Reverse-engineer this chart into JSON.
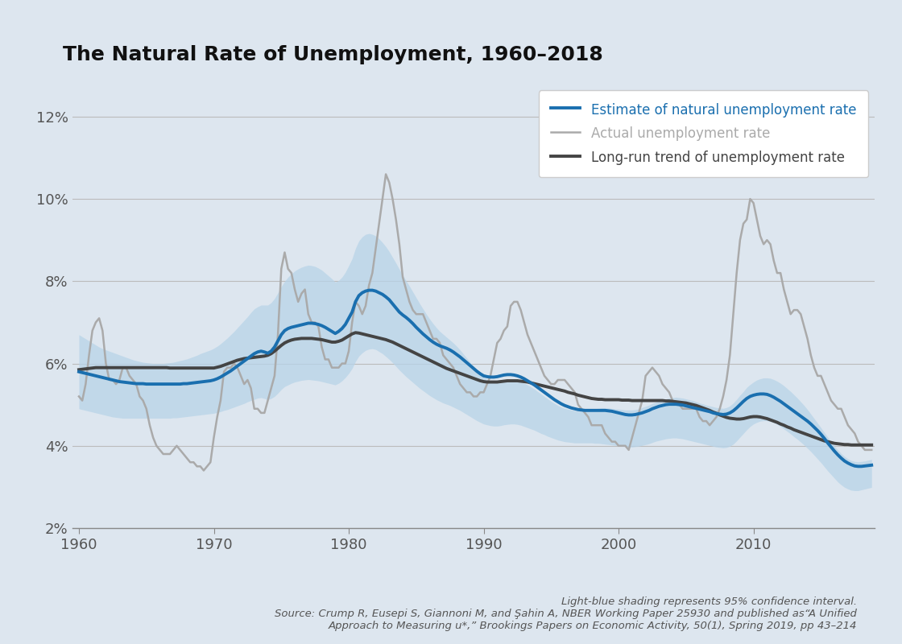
{
  "title": "The Natural Rate of Unemployment, 1960–2018",
  "background_color": "#dde6ef",
  "plot_background_color": "#dde6ef",
  "yticks": [
    2,
    4,
    6,
    8,
    10,
    12
  ],
  "ytick_labels": [
    "2%",
    "4%",
    "6%",
    "8%",
    "10%",
    "12%"
  ],
  "xticks": [
    1960,
    1970,
    1980,
    1990,
    2000,
    2010
  ],
  "xlim": [
    1959.5,
    2019.0
  ],
  "ylim": [
    2.0,
    12.8
  ],
  "footnote_line1": "Light-blue shading represents 95% confidence interval.",
  "footnote_line2": "Source: Crump R, Eusepi S, Giannoni M, and Şahin A, NBER Working Paper 25930 and published as“A Unified",
  "footnote_line3": "Approach to Measuring u*,” Brookings Papers on Economic Activity, 50(1), Spring 2019, pp 43–214",
  "legend_label1": "Estimate of natural unemployment rate",
  "legend_label2": "Actual unemployment rate",
  "legend_label3": "Long-run trend of unemployment rate",
  "estimate_color": "#1a6faf",
  "actual_color": "#aaaaaa",
  "trend_color": "#444444",
  "ci_color": "#b8d4e8",
  "years_q": [
    1960.0,
    1960.25,
    1960.5,
    1960.75,
    1961.0,
    1961.25,
    1961.5,
    1961.75,
    1962.0,
    1962.25,
    1962.5,
    1962.75,
    1963.0,
    1963.25,
    1963.5,
    1963.75,
    1964.0,
    1964.25,
    1964.5,
    1964.75,
    1965.0,
    1965.25,
    1965.5,
    1965.75,
    1966.0,
    1966.25,
    1966.5,
    1966.75,
    1967.0,
    1967.25,
    1967.5,
    1967.75,
    1968.0,
    1968.25,
    1968.5,
    1968.75,
    1969.0,
    1969.25,
    1969.5,
    1969.75,
    1970.0,
    1970.25,
    1970.5,
    1970.75,
    1971.0,
    1971.25,
    1971.5,
    1971.75,
    1972.0,
    1972.25,
    1972.5,
    1972.75,
    1973.0,
    1973.25,
    1973.5,
    1973.75,
    1974.0,
    1974.25,
    1974.5,
    1974.75,
    1975.0,
    1975.25,
    1975.5,
    1975.75,
    1976.0,
    1976.25,
    1976.5,
    1976.75,
    1977.0,
    1977.25,
    1977.5,
    1977.75,
    1978.0,
    1978.25,
    1978.5,
    1978.75,
    1979.0,
    1979.25,
    1979.5,
    1979.75,
    1980.0,
    1980.25,
    1980.5,
    1980.75,
    1981.0,
    1981.25,
    1981.5,
    1981.75,
    1982.0,
    1982.25,
    1982.5,
    1982.75,
    1983.0,
    1983.25,
    1983.5,
    1983.75,
    1984.0,
    1984.25,
    1984.5,
    1984.75,
    1985.0,
    1985.25,
    1985.5,
    1985.75,
    1986.0,
    1986.25,
    1986.5,
    1986.75,
    1987.0,
    1987.25,
    1987.5,
    1987.75,
    1988.0,
    1988.25,
    1988.5,
    1988.75,
    1989.0,
    1989.25,
    1989.5,
    1989.75,
    1990.0,
    1990.25,
    1990.5,
    1990.75,
    1991.0,
    1991.25,
    1991.5,
    1991.75,
    1992.0,
    1992.25,
    1992.5,
    1992.75,
    1993.0,
    1993.25,
    1993.5,
    1993.75,
    1994.0,
    1994.25,
    1994.5,
    1994.75,
    1995.0,
    1995.25,
    1995.5,
    1995.75,
    1996.0,
    1996.25,
    1996.5,
    1996.75,
    1997.0,
    1997.25,
    1997.5,
    1997.75,
    1998.0,
    1998.25,
    1998.5,
    1998.75,
    1999.0,
    1999.25,
    1999.5,
    1999.75,
    2000.0,
    2000.25,
    2000.5,
    2000.75,
    2001.0,
    2001.25,
    2001.5,
    2001.75,
    2002.0,
    2002.25,
    2002.5,
    2002.75,
    2003.0,
    2003.25,
    2003.5,
    2003.75,
    2004.0,
    2004.25,
    2004.5,
    2004.75,
    2005.0,
    2005.25,
    2005.5,
    2005.75,
    2006.0,
    2006.25,
    2006.5,
    2006.75,
    2007.0,
    2007.25,
    2007.5,
    2007.75,
    2008.0,
    2008.25,
    2008.5,
    2008.75,
    2009.0,
    2009.25,
    2009.5,
    2009.75,
    2010.0,
    2010.25,
    2010.5,
    2010.75,
    2011.0,
    2011.25,
    2011.5,
    2011.75,
    2012.0,
    2012.25,
    2012.5,
    2012.75,
    2013.0,
    2013.25,
    2013.5,
    2013.75,
    2014.0,
    2014.25,
    2014.5,
    2014.75,
    2015.0,
    2015.25,
    2015.5,
    2015.75,
    2016.0,
    2016.25,
    2016.5,
    2016.75,
    2017.0,
    2017.25,
    2017.5,
    2017.75,
    2018.0,
    2018.25,
    2018.5,
    2018.75
  ],
  "estimate": [
    5.8,
    5.78,
    5.76,
    5.74,
    5.72,
    5.7,
    5.68,
    5.66,
    5.64,
    5.62,
    5.6,
    5.58,
    5.56,
    5.55,
    5.54,
    5.53,
    5.52,
    5.51,
    5.51,
    5.51,
    5.5,
    5.5,
    5.5,
    5.5,
    5.5,
    5.5,
    5.5,
    5.5,
    5.5,
    5.5,
    5.5,
    5.51,
    5.51,
    5.52,
    5.53,
    5.54,
    5.55,
    5.56,
    5.57,
    5.58,
    5.6,
    5.63,
    5.67,
    5.72,
    5.77,
    5.82,
    5.88,
    5.94,
    6.0,
    6.06,
    6.12,
    6.18,
    6.24,
    6.28,
    6.3,
    6.28,
    6.25,
    6.3,
    6.4,
    6.55,
    6.7,
    6.8,
    6.85,
    6.88,
    6.9,
    6.92,
    6.94,
    6.96,
    6.98,
    6.98,
    6.97,
    6.95,
    6.92,
    6.88,
    6.83,
    6.78,
    6.73,
    6.78,
    6.85,
    6.95,
    7.1,
    7.25,
    7.5,
    7.65,
    7.72,
    7.76,
    7.78,
    7.78,
    7.76,
    7.72,
    7.68,
    7.62,
    7.55,
    7.45,
    7.35,
    7.25,
    7.18,
    7.12,
    7.05,
    6.97,
    6.88,
    6.8,
    6.72,
    6.65,
    6.58,
    6.52,
    6.47,
    6.43,
    6.4,
    6.37,
    6.33,
    6.28,
    6.22,
    6.16,
    6.09,
    6.02,
    5.95,
    5.88,
    5.81,
    5.75,
    5.7,
    5.68,
    5.67,
    5.67,
    5.68,
    5.7,
    5.72,
    5.73,
    5.73,
    5.72,
    5.7,
    5.67,
    5.63,
    5.58,
    5.53,
    5.48,
    5.42,
    5.36,
    5.3,
    5.24,
    5.18,
    5.12,
    5.07,
    5.02,
    4.98,
    4.95,
    4.92,
    4.9,
    4.88,
    4.87,
    4.86,
    4.86,
    4.86,
    4.86,
    4.86,
    4.86,
    4.86,
    4.85,
    4.84,
    4.82,
    4.8,
    4.78,
    4.76,
    4.75,
    4.75,
    4.76,
    4.78,
    4.8,
    4.83,
    4.86,
    4.9,
    4.93,
    4.96,
    4.98,
    5.0,
    5.01,
    5.01,
    5.01,
    5.0,
    4.99,
    4.97,
    4.95,
    4.93,
    4.91,
    4.89,
    4.87,
    4.85,
    4.83,
    4.8,
    4.78,
    4.77,
    4.76,
    4.77,
    4.8,
    4.85,
    4.92,
    5.0,
    5.08,
    5.15,
    5.2,
    5.23,
    5.25,
    5.26,
    5.26,
    5.25,
    5.22,
    5.18,
    5.13,
    5.08,
    5.02,
    4.96,
    4.9,
    4.84,
    4.78,
    4.72,
    4.66,
    4.6,
    4.53,
    4.45,
    4.37,
    4.28,
    4.18,
    4.07,
    3.97,
    3.87,
    3.78,
    3.7,
    3.63,
    3.58,
    3.54,
    3.51,
    3.5,
    3.5,
    3.51,
    3.52,
    3.53
  ],
  "ci_upper": [
    6.7,
    6.65,
    6.6,
    6.55,
    6.5,
    6.45,
    6.4,
    6.36,
    6.33,
    6.3,
    6.27,
    6.24,
    6.21,
    6.18,
    6.15,
    6.12,
    6.09,
    6.07,
    6.05,
    6.03,
    6.02,
    6.01,
    6.0,
    6.0,
    6.0,
    6.0,
    6.01,
    6.02,
    6.03,
    6.05,
    6.07,
    6.09,
    6.11,
    6.14,
    6.17,
    6.2,
    6.24,
    6.27,
    6.3,
    6.33,
    6.37,
    6.42,
    6.48,
    6.55,
    6.62,
    6.7,
    6.78,
    6.87,
    6.96,
    7.05,
    7.14,
    7.24,
    7.33,
    7.38,
    7.42,
    7.42,
    7.42,
    7.48,
    7.58,
    7.72,
    7.87,
    8.0,
    8.1,
    8.18,
    8.25,
    8.3,
    8.34,
    8.37,
    8.39,
    8.38,
    8.36,
    8.32,
    8.27,
    8.2,
    8.13,
    8.06,
    7.98,
    8.02,
    8.1,
    8.22,
    8.38,
    8.55,
    8.8,
    8.98,
    9.08,
    9.14,
    9.16,
    9.14,
    9.1,
    9.03,
    8.94,
    8.84,
    8.72,
    8.58,
    8.44,
    8.29,
    8.15,
    8.01,
    7.88,
    7.74,
    7.6,
    7.46,
    7.33,
    7.2,
    7.08,
    6.97,
    6.87,
    6.78,
    6.71,
    6.64,
    6.57,
    6.5,
    6.42,
    6.33,
    6.23,
    6.13,
    6.03,
    5.93,
    5.83,
    5.74,
    5.66,
    5.61,
    5.58,
    5.56,
    5.56,
    5.57,
    5.59,
    5.6,
    5.61,
    5.6,
    5.59,
    5.56,
    5.52,
    5.48,
    5.43,
    5.38,
    5.32,
    5.26,
    5.2,
    5.14,
    5.08,
    5.03,
    4.98,
    4.94,
    4.91,
    4.89,
    4.87,
    4.86,
    4.86,
    4.86,
    4.87,
    4.88,
    4.89,
    4.9,
    4.91,
    4.92,
    4.92,
    4.92,
    4.91,
    4.9,
    4.89,
    4.88,
    4.87,
    4.87,
    4.87,
    4.88,
    4.9,
    4.93,
    4.96,
    4.99,
    5.03,
    5.06,
    5.09,
    5.12,
    5.14,
    5.16,
    5.17,
    5.18,
    5.17,
    5.16,
    5.14,
    5.12,
    5.1,
    5.07,
    5.04,
    5.02,
    4.99,
    4.97,
    4.95,
    4.93,
    4.92,
    4.91,
    4.93,
    4.97,
    5.04,
    5.13,
    5.23,
    5.32,
    5.42,
    5.49,
    5.55,
    5.6,
    5.63,
    5.65,
    5.65,
    5.64,
    5.61,
    5.57,
    5.52,
    5.46,
    5.39,
    5.32,
    5.24,
    5.16,
    5.07,
    4.98,
    4.88,
    4.77,
    4.66,
    4.55,
    4.44,
    4.32,
    4.21,
    4.1,
    3.99,
    3.9,
    3.81,
    3.74,
    3.68,
    3.64,
    3.62,
    3.61,
    3.62,
    3.63,
    3.65,
    3.67
  ],
  "ci_lower": [
    4.9,
    4.88,
    4.86,
    4.84,
    4.82,
    4.8,
    4.78,
    4.76,
    4.74,
    4.72,
    4.7,
    4.69,
    4.68,
    4.67,
    4.67,
    4.67,
    4.67,
    4.67,
    4.67,
    4.67,
    4.67,
    4.67,
    4.67,
    4.67,
    4.67,
    4.67,
    4.67,
    4.67,
    4.68,
    4.68,
    4.69,
    4.7,
    4.71,
    4.72,
    4.73,
    4.74,
    4.75,
    4.76,
    4.77,
    4.78,
    4.79,
    4.81,
    4.83,
    4.86,
    4.88,
    4.91,
    4.94,
    4.97,
    5.0,
    5.03,
    5.07,
    5.1,
    5.13,
    5.16,
    5.17,
    5.15,
    5.12,
    5.15,
    5.2,
    5.28,
    5.37,
    5.44,
    5.48,
    5.52,
    5.55,
    5.57,
    5.59,
    5.6,
    5.61,
    5.6,
    5.59,
    5.58,
    5.56,
    5.54,
    5.52,
    5.5,
    5.48,
    5.52,
    5.58,
    5.66,
    5.76,
    5.88,
    6.05,
    6.18,
    6.26,
    6.32,
    6.35,
    6.36,
    6.34,
    6.29,
    6.24,
    6.17,
    6.1,
    6.02,
    5.93,
    5.84,
    5.76,
    5.68,
    5.61,
    5.54,
    5.47,
    5.4,
    5.34,
    5.28,
    5.22,
    5.17,
    5.12,
    5.08,
    5.04,
    5.01,
    4.98,
    4.94,
    4.9,
    4.86,
    4.81,
    4.76,
    4.71,
    4.66,
    4.61,
    4.57,
    4.53,
    4.51,
    4.49,
    4.48,
    4.48,
    4.49,
    4.51,
    4.52,
    4.53,
    4.53,
    4.52,
    4.5,
    4.47,
    4.44,
    4.41,
    4.38,
    4.34,
    4.3,
    4.27,
    4.23,
    4.2,
    4.17,
    4.14,
    4.12,
    4.1,
    4.09,
    4.08,
    4.07,
    4.07,
    4.07,
    4.07,
    4.07,
    4.07,
    4.06,
    4.06,
    4.05,
    4.04,
    4.03,
    4.02,
    4.01,
    4.0,
    3.99,
    3.98,
    3.97,
    3.97,
    3.98,
    3.99,
    4.01,
    4.03,
    4.05,
    4.08,
    4.11,
    4.13,
    4.15,
    4.17,
    4.18,
    4.19,
    4.19,
    4.18,
    4.17,
    4.15,
    4.13,
    4.11,
    4.09,
    4.07,
    4.05,
    4.03,
    4.01,
    3.99,
    3.97,
    3.96,
    3.95,
    3.96,
    3.99,
    4.04,
    4.12,
    4.21,
    4.3,
    4.39,
    4.47,
    4.53,
    4.57,
    4.6,
    4.61,
    4.61,
    4.59,
    4.56,
    4.52,
    4.47,
    4.41,
    4.35,
    4.29,
    4.22,
    4.16,
    4.09,
    4.02,
    3.94,
    3.86,
    3.77,
    3.68,
    3.59,
    3.49,
    3.39,
    3.3,
    3.21,
    3.12,
    3.05,
    2.99,
    2.95,
    2.92,
    2.91,
    2.91,
    2.93,
    2.95,
    2.97,
    2.99
  ],
  "actual": [
    5.2,
    5.1,
    5.5,
    6.2,
    6.8,
    7.0,
    7.1,
    6.8,
    6.0,
    5.6,
    5.6,
    5.5,
    5.6,
    5.9,
    5.9,
    5.7,
    5.6,
    5.5,
    5.2,
    5.1,
    4.9,
    4.5,
    4.2,
    4.0,
    3.9,
    3.8,
    3.8,
    3.8,
    3.9,
    4.0,
    3.9,
    3.8,
    3.7,
    3.6,
    3.6,
    3.5,
    3.5,
    3.4,
    3.5,
    3.6,
    4.2,
    4.7,
    5.1,
    5.8,
    5.9,
    5.9,
    6.0,
    5.9,
    5.7,
    5.5,
    5.6,
    5.4,
    4.9,
    4.9,
    4.8,
    4.8,
    5.1,
    5.4,
    5.7,
    6.7,
    8.3,
    8.7,
    8.3,
    8.2,
    7.8,
    7.5,
    7.7,
    7.8,
    7.2,
    7.0,
    7.0,
    6.9,
    6.4,
    6.1,
    6.1,
    5.9,
    5.9,
    5.9,
    6.0,
    6.0,
    6.3,
    7.0,
    7.5,
    7.4,
    7.2,
    7.4,
    7.9,
    8.2,
    8.8,
    9.4,
    10.0,
    10.6,
    10.4,
    10.0,
    9.5,
    8.9,
    8.1,
    7.8,
    7.5,
    7.3,
    7.2,
    7.2,
    7.2,
    7.0,
    6.8,
    6.6,
    6.6,
    6.5,
    6.2,
    6.1,
    6.0,
    5.9,
    5.7,
    5.5,
    5.4,
    5.3,
    5.3,
    5.2,
    5.2,
    5.3,
    5.3,
    5.5,
    5.7,
    6.1,
    6.5,
    6.6,
    6.8,
    6.9,
    7.4,
    7.5,
    7.5,
    7.3,
    7.0,
    6.7,
    6.5,
    6.3,
    6.1,
    5.9,
    5.7,
    5.6,
    5.5,
    5.5,
    5.6,
    5.6,
    5.6,
    5.5,
    5.4,
    5.3,
    5.0,
    4.9,
    4.8,
    4.7,
    4.5,
    4.5,
    4.5,
    4.5,
    4.3,
    4.2,
    4.1,
    4.1,
    4.0,
    4.0,
    4.0,
    3.9,
    4.2,
    4.5,
    4.8,
    5.1,
    5.7,
    5.8,
    5.9,
    5.8,
    5.7,
    5.5,
    5.4,
    5.3,
    5.1,
    5.0,
    5.0,
    4.9,
    4.9,
    4.9,
    4.9,
    4.9,
    4.7,
    4.6,
    4.6,
    4.5,
    4.6,
    4.7,
    4.9,
    5.2,
    5.6,
    6.2,
    7.2,
    8.2,
    9.0,
    9.4,
    9.5,
    10.0,
    9.9,
    9.5,
    9.1,
    8.9,
    9.0,
    8.9,
    8.5,
    8.2,
    8.2,
    7.8,
    7.5,
    7.2,
    7.3,
    7.3,
    7.2,
    6.9,
    6.6,
    6.2,
    5.9,
    5.7,
    5.7,
    5.5,
    5.3,
    5.1,
    5.0,
    4.9,
    4.9,
    4.7,
    4.5,
    4.4,
    4.3,
    4.1,
    4.0,
    3.9,
    3.9,
    3.9
  ],
  "trend": [
    5.85,
    5.86,
    5.87,
    5.88,
    5.89,
    5.9,
    5.9,
    5.9,
    5.9,
    5.9,
    5.9,
    5.9,
    5.9,
    5.9,
    5.9,
    5.9,
    5.9,
    5.9,
    5.9,
    5.9,
    5.9,
    5.9,
    5.9,
    5.9,
    5.9,
    5.9,
    5.9,
    5.89,
    5.89,
    5.89,
    5.89,
    5.89,
    5.89,
    5.89,
    5.89,
    5.89,
    5.89,
    5.89,
    5.89,
    5.89,
    5.89,
    5.91,
    5.93,
    5.96,
    5.99,
    6.02,
    6.05,
    6.08,
    6.1,
    6.12,
    6.13,
    6.14,
    6.15,
    6.16,
    6.17,
    6.18,
    6.2,
    6.24,
    6.3,
    6.37,
    6.44,
    6.5,
    6.54,
    6.57,
    6.59,
    6.6,
    6.61,
    6.61,
    6.61,
    6.61,
    6.6,
    6.59,
    6.58,
    6.56,
    6.54,
    6.52,
    6.52,
    6.54,
    6.57,
    6.62,
    6.67,
    6.72,
    6.75,
    6.74,
    6.72,
    6.7,
    6.68,
    6.66,
    6.64,
    6.62,
    6.6,
    6.58,
    6.55,
    6.52,
    6.48,
    6.44,
    6.4,
    6.36,
    6.32,
    6.28,
    6.24,
    6.2,
    6.16,
    6.12,
    6.08,
    6.04,
    6.0,
    5.96,
    5.92,
    5.88,
    5.85,
    5.82,
    5.79,
    5.76,
    5.73,
    5.7,
    5.67,
    5.64,
    5.61,
    5.58,
    5.56,
    5.55,
    5.55,
    5.55,
    5.55,
    5.56,
    5.57,
    5.58,
    5.58,
    5.58,
    5.58,
    5.57,
    5.56,
    5.55,
    5.53,
    5.51,
    5.49,
    5.47,
    5.45,
    5.43,
    5.41,
    5.39,
    5.37,
    5.35,
    5.33,
    5.3,
    5.28,
    5.26,
    5.23,
    5.21,
    5.19,
    5.17,
    5.15,
    5.14,
    5.13,
    5.13,
    5.12,
    5.12,
    5.12,
    5.12,
    5.12,
    5.11,
    5.11,
    5.11,
    5.1,
    5.1,
    5.1,
    5.1,
    5.1,
    5.1,
    5.1,
    5.1,
    5.1,
    5.1,
    5.09,
    5.09,
    5.08,
    5.07,
    5.06,
    5.05,
    5.04,
    5.02,
    5.0,
    4.98,
    4.95,
    4.92,
    4.89,
    4.86,
    4.82,
    4.79,
    4.75,
    4.72,
    4.69,
    4.67,
    4.66,
    4.65,
    4.65,
    4.66,
    4.68,
    4.7,
    4.71,
    4.71,
    4.7,
    4.68,
    4.66,
    4.63,
    4.6,
    4.57,
    4.53,
    4.5,
    4.46,
    4.43,
    4.39,
    4.36,
    4.33,
    4.3,
    4.27,
    4.24,
    4.21,
    4.18,
    4.15,
    4.12,
    4.1,
    4.08,
    4.06,
    4.05,
    4.04,
    4.03,
    4.03,
    4.02,
    4.02,
    4.02,
    4.02,
    4.02,
    4.02,
    4.02
  ]
}
